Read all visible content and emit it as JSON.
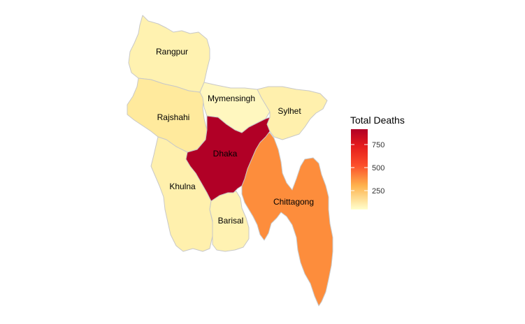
{
  "map": {
    "regions": [
      {
        "id": "rangpur",
        "name": "Rangpur",
        "fill": "#FFF2B0"
      },
      {
        "id": "rajshahi",
        "name": "Rajshahi",
        "fill": "#FFEA9D"
      },
      {
        "id": "mymensingh",
        "name": "Mymensingh",
        "fill": "#FFF7BF"
      },
      {
        "id": "sylhet",
        "name": "Sylhet",
        "fill": "#FFF0AD"
      },
      {
        "id": "dhaka",
        "name": "Dhaka",
        "fill": "#B10026"
      },
      {
        "id": "khulna",
        "name": "Khulna",
        "fill": "#FFF0AD"
      },
      {
        "id": "barisal",
        "name": "Barisal",
        "fill": "#FFF2B2"
      },
      {
        "id": "chittagong",
        "name": "Chittagong",
        "fill": "#FD8D3C"
      }
    ]
  },
  "legend": {
    "title": "Total Deaths",
    "ticks": [
      "750",
      "500",
      "250"
    ],
    "color_high": "#B10026",
    "color_mid_high": "#E31A1C",
    "color_mid": "#FC4E2A",
    "color_mid_low": "#FEB24C",
    "color_low": "#FFFFCC"
  }
}
